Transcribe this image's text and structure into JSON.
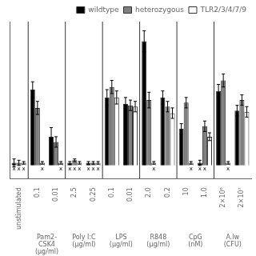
{
  "chart_data": {
    "type": "bar",
    "categories": [
      "unstimulated",
      "0.1",
      "0.01",
      "2.5",
      "0.25",
      "0.1",
      "0.01",
      "2.0",
      "0.2",
      "10",
      "1.0",
      "2×10⁶",
      "2×10⁷"
    ],
    "category_groups": [
      null,
      "Pam2-\nCSK4\n(μg/ml)",
      "Pam2-\nCSK4\n(μg/ml)",
      "Poly I:C\n(μg/ml)",
      "Poly I:C\n(μg/ml)",
      "LPS\n(μg/ml)",
      "LPS\n(μg/ml)",
      "R848\n(μg/ml)",
      "R848\n(μg/ml)",
      "CpG\n(nM)",
      "CpG\n(nM)",
      "A.lw\n(CFU)",
      "A.lw\n(CFU)"
    ],
    "series": [
      {
        "name": "wildtype",
        "color": "#000000",
        "values": [
          0.02,
          0.58,
          0.22,
          0.02,
          0.02,
          0.52,
          0.47,
          0.95,
          0.52,
          0.28,
          0.02,
          0.57,
          0.42
        ],
        "errors": [
          0.03,
          0.06,
          0.07,
          0.01,
          0.01,
          0.06,
          0.05,
          0.08,
          0.05,
          0.04,
          0.02,
          0.05,
          0.04
        ],
        "annotations": [
          "x",
          null,
          null,
          "x",
          "x",
          null,
          null,
          null,
          null,
          null,
          "x",
          null,
          null
        ]
      },
      {
        "name": "heterozygous",
        "color": "#808080",
        "values": [
          0.02,
          0.44,
          0.18,
          0.04,
          0.02,
          0.6,
          0.46,
          0.5,
          0.45,
          0.48,
          0.3,
          0.65,
          0.5
        ],
        "errors": [
          0.02,
          0.05,
          0.04,
          0.01,
          0.01,
          0.05,
          0.04,
          0.06,
          0.04,
          0.04,
          0.04,
          0.05,
          0.04
        ],
        "annotations": [
          "x",
          null,
          null,
          "x",
          "x",
          null,
          null,
          null,
          null,
          null,
          "x",
          null,
          null
        ]
      },
      {
        "name": "TLR2/3/4/7/9",
        "color": "#ffffff",
        "values": [
          0.02,
          0.02,
          0.02,
          0.02,
          0.02,
          0.52,
          0.45,
          0.02,
          0.4,
          0.02,
          0.22,
          0.02,
          0.41
        ],
        "errors": [
          0.01,
          0.01,
          0.01,
          0.01,
          0.01,
          0.05,
          0.04,
          0.01,
          0.04,
          0.01,
          0.03,
          0.01,
          0.04
        ],
        "annotations": [
          "x",
          "x",
          "x",
          "x",
          "x",
          null,
          null,
          "x",
          null,
          "x",
          null,
          "x",
          null
        ]
      }
    ],
    "ylim": [
      -0.1,
      1.1
    ],
    "tick_labels": "x",
    "grid": false,
    "legend": "upper right"
  }
}
